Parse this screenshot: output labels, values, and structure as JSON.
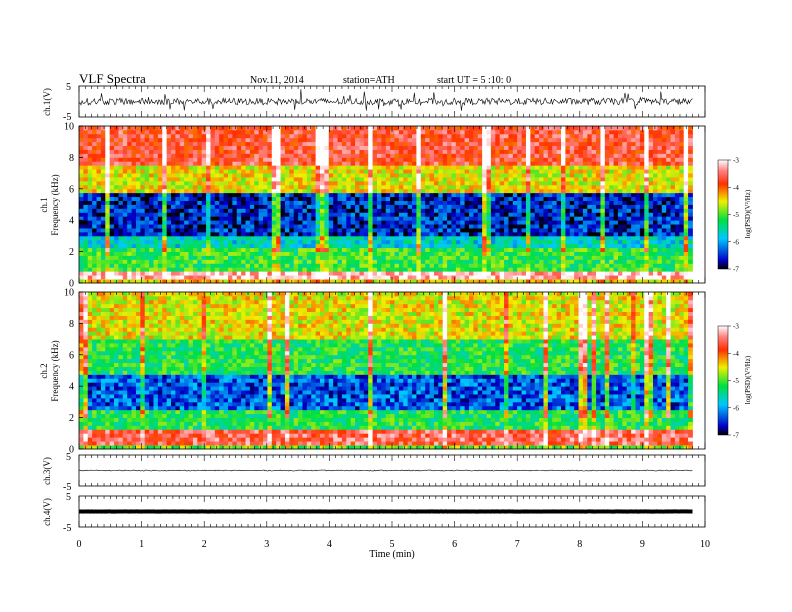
{
  "header": {
    "title": "VLF  Spectra",
    "date": "Nov.11, 2014",
    "station": "station=ATH",
    "start": "start  UT  =   5  :10: 0"
  },
  "chart_data": [
    {
      "type": "line",
      "name": "ch1-waveform",
      "ylabel": "ch.1(V)",
      "ylim": [
        -5,
        5
      ],
      "yticks": [
        "5",
        "-5"
      ],
      "baseline": 0,
      "x_range_min": [
        0,
        9.8
      ]
    },
    {
      "type": "heatmap",
      "name": "ch1-spectrogram",
      "ylabel_top": "ch.1",
      "ylabel": "Frequency  (kHz)",
      "ylim": [
        0,
        10
      ],
      "yticks": [
        "0",
        "2",
        "4",
        "6",
        "8",
        "10"
      ],
      "x_range_min": [
        0,
        9.8
      ],
      "colorbar": {
        "label": "log(PSD)(V²/Hz)",
        "range": [
          -7,
          -3
        ],
        "ticks": [
          "-3",
          "-4",
          "-5",
          "-6",
          "-7"
        ]
      },
      "bands": [
        {
          "f": [
            0,
            0.25
          ],
          "value": -4.5
        },
        {
          "f": [
            0.25,
            0.7
          ],
          "value": -3.2
        },
        {
          "f": [
            0.7,
            2.2
          ],
          "value": -5.2
        },
        {
          "f": [
            2.2,
            3.0
          ],
          "value": -5.8
        },
        {
          "f": [
            3.0,
            5.8
          ],
          "value": -6.6
        },
        {
          "f": [
            5.8,
            7.6
          ],
          "value": -4.6
        },
        {
          "f": [
            7.6,
            10
          ],
          "value": -3.7
        }
      ]
    },
    {
      "type": "heatmap",
      "name": "ch2-spectrogram",
      "ylabel_top": "ch.2",
      "ylabel": "Frequency  (kHz)",
      "ylim": [
        0,
        10
      ],
      "yticks": [
        "0",
        "2",
        "4",
        "6",
        "8",
        "10"
      ],
      "x_range_min": [
        0,
        9.8
      ],
      "colorbar": {
        "label": "log(PSD)(V²/Hz)",
        "range": [
          -7,
          -3
        ],
        "ticks": [
          "-3",
          "-4",
          "-5",
          "-6",
          "-7"
        ]
      },
      "bands": [
        {
          "f": [
            0,
            0.3
          ],
          "value": -5.0
        },
        {
          "f": [
            0.3,
            1.3
          ],
          "value": -3.6
        },
        {
          "f": [
            1.3,
            2.5
          ],
          "value": -5.3
        },
        {
          "f": [
            2.5,
            4.8
          ],
          "value": -6.4
        },
        {
          "f": [
            4.8,
            7.0
          ],
          "value": -5.3
        },
        {
          "f": [
            7.0,
            10
          ],
          "value": -4.6
        }
      ]
    },
    {
      "type": "line",
      "name": "ch3-waveform",
      "ylabel": "ch.3(V)",
      "ylim": [
        -5,
        5
      ],
      "yticks": [
        "5",
        "-5"
      ],
      "baseline": 0,
      "x_range_min": [
        0,
        9.8
      ]
    },
    {
      "type": "line",
      "name": "ch4-waveform",
      "ylabel": "ch.4(V)",
      "ylim": [
        -5,
        5
      ],
      "yticks": [
        "5",
        "-5"
      ],
      "baseline": 0,
      "x_range_min": [
        0,
        9.8
      ]
    }
  ],
  "xaxis": {
    "label": "Time  (min)",
    "range": [
      0,
      10
    ],
    "ticks": [
      "0",
      "1",
      "2",
      "3",
      "4",
      "5",
      "6",
      "7",
      "8",
      "9",
      "10"
    ]
  }
}
